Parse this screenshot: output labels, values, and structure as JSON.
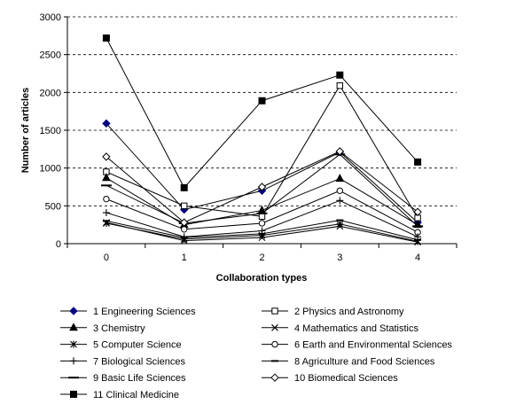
{
  "chart_data": {
    "type": "line",
    "title": "",
    "xlabel": "Collaboration types",
    "ylabel": "Number of articles",
    "categories": [
      "0",
      "1",
      "2",
      "3",
      "4"
    ],
    "ylim": [
      0,
      3000
    ],
    "yticks": [
      0,
      500,
      1000,
      1500,
      2000,
      2500,
      3000
    ],
    "grid": "horizontal dashed",
    "legend_position": "bottom",
    "series": [
      {
        "name": "1 Engineering Sciences",
        "marker": "diamond-filled",
        "values": [
          1590,
          450,
          700,
          1210,
          280
        ]
      },
      {
        "name": "2 Physics and Astronomy",
        "marker": "square-open",
        "values": [
          950,
          500,
          360,
          2090,
          340
        ]
      },
      {
        "name": "3 Chemistry",
        "marker": "triangle-filled",
        "values": [
          870,
          250,
          440,
          860,
          250
        ]
      },
      {
        "name": "4 Mathematics and Statistics",
        "marker": "x",
        "values": [
          280,
          40,
          80,
          230,
          20
        ]
      },
      {
        "name": "5 Computer Science",
        "marker": "star",
        "values": [
          270,
          60,
          110,
          260,
          30
        ]
      },
      {
        "name": "6 Earth and Environmental Sciences",
        "marker": "circle-open",
        "values": [
          590,
          190,
          270,
          700,
          150
        ]
      },
      {
        "name": "7 Biological Sciences",
        "marker": "plus",
        "values": [
          410,
          90,
          170,
          570,
          90
        ]
      },
      {
        "name": "8 Agriculture and Food Sciences",
        "marker": "dash",
        "values": [
          300,
          80,
          130,
          310,
          50
        ]
      },
      {
        "name": "9 Basic Life Sciences",
        "marker": "long-dash",
        "values": [
          770,
          270,
          400,
          1180,
          230
        ]
      },
      {
        "name": "10 Biomedical Sciences",
        "marker": "diamond-open",
        "values": [
          1150,
          280,
          750,
          1220,
          420
        ]
      },
      {
        "name": "11 Clinical Medicine",
        "marker": "square-filled",
        "values": [
          2720,
          740,
          1890,
          2230,
          1080
        ]
      }
    ]
  }
}
